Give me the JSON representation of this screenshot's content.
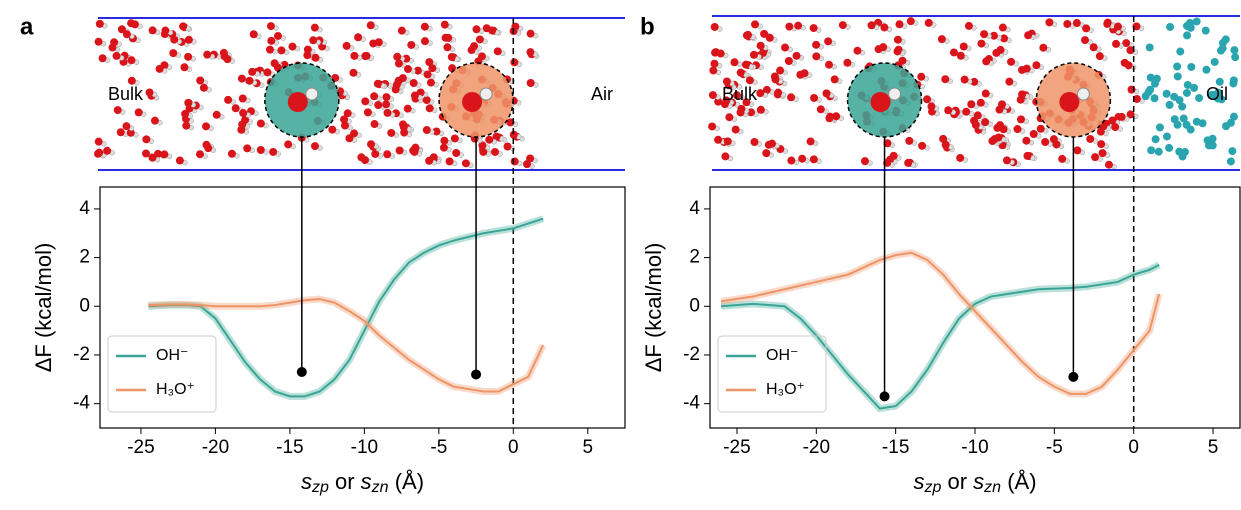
{
  "chart_data": [
    {
      "type": "line",
      "panel_label": "a",
      "left_text": "Bulk",
      "right_text": "Air",
      "ylabel": "ΔF (kcal/mol)",
      "xlabel": [
        "s",
        "zp",
        " or ",
        "s",
        "zn",
        " (Å)"
      ],
      "xlim": [
        -27.75,
        7.5
      ],
      "ylim": [
        -5,
        4.9
      ],
      "xticks": [
        -25,
        -20,
        -15,
        -10,
        -5,
        0,
        5
      ],
      "yticks": [
        -4,
        -2,
        0,
        2,
        4
      ],
      "vline": 0,
      "series": [
        {
          "name": "OH⁻",
          "color": "#3aa596",
          "x": [
            -24.5,
            -23,
            -22,
            -21,
            -20,
            -19,
            -18,
            -17,
            -16,
            -15,
            -14,
            -13,
            -12,
            -11,
            -10,
            -9,
            -8,
            -7,
            -6,
            -5,
            -4,
            -3,
            -2,
            -1,
            0,
            1,
            2
          ],
          "values": [
            0,
            0.05,
            0.05,
            0,
            -0.5,
            -1.4,
            -2.3,
            -3.0,
            -3.5,
            -3.7,
            -3.7,
            -3.5,
            -3.0,
            -2.2,
            -1.0,
            0.2,
            1.1,
            1.8,
            2.2,
            2.5,
            2.7,
            2.85,
            3.0,
            3.1,
            3.2,
            3.4,
            3.6
          ]
        },
        {
          "name": "H₃O⁺",
          "color": "#ee9466",
          "x": [
            -24.5,
            -23,
            -22,
            -21,
            -20,
            -19,
            -18,
            -17,
            -16,
            -15,
            -14,
            -13,
            -12,
            -11,
            -10,
            -9,
            -8,
            -7,
            -6,
            -5,
            -4,
            -3,
            -2,
            -1,
            0,
            1,
            2
          ],
          "values": [
            0.05,
            0.08,
            0.08,
            0.05,
            0,
            0,
            0,
            0,
            0.05,
            0.15,
            0.25,
            0.3,
            0.15,
            -0.2,
            -0.6,
            -1.2,
            -1.7,
            -2.2,
            -2.6,
            -3.0,
            -3.3,
            -3.4,
            -3.5,
            -3.5,
            -3.2,
            -2.9,
            -1.6
          ]
        }
      ],
      "markers": [
        {
          "x": -14.2,
          "y": -2.7
        },
        {
          "x": -2.5,
          "y": -2.8
        }
      ]
    },
    {
      "type": "line",
      "panel_label": "b",
      "left_text": "Bulk",
      "right_text": "Oil",
      "ylabel": "ΔF (kcal/mol)",
      "xlabel": [
        "s",
        "zp",
        " or ",
        "s",
        "zn",
        " (Å)"
      ],
      "xlim": [
        -26.7,
        6.7
      ],
      "ylim": [
        -5,
        4.9
      ],
      "xticks": [
        -25,
        -20,
        -15,
        -10,
        -5,
        0,
        5
      ],
      "yticks": [
        -4,
        -2,
        0,
        2,
        4
      ],
      "vline": 0,
      "series": [
        {
          "name": "OH⁻",
          "color": "#3aa596",
          "x": [
            -26,
            -24,
            -22,
            -21,
            -20,
            -19,
            -18,
            -17,
            -16,
            -15,
            -14,
            -13,
            -12,
            -11,
            -10,
            -9,
            -8,
            -6,
            -4,
            -3,
            -2,
            -1,
            0,
            1,
            1.6
          ],
          "values": [
            0,
            0.1,
            0,
            -0.5,
            -1.2,
            -2.0,
            -2.8,
            -3.5,
            -4.2,
            -4.1,
            -3.5,
            -2.6,
            -1.5,
            -0.5,
            0.1,
            0.4,
            0.5,
            0.7,
            0.75,
            0.8,
            0.9,
            1.0,
            1.3,
            1.5,
            1.7
          ]
        },
        {
          "name": "H₃O⁺",
          "color": "#ee9466",
          "x": [
            -26,
            -24,
            -22,
            -20,
            -18,
            -17,
            -16,
            -15,
            -14,
            -13,
            -12,
            -11,
            -10,
            -9,
            -8,
            -7,
            -6,
            -5,
            -4,
            -3,
            -2,
            -1,
            0,
            1,
            1.6
          ],
          "values": [
            0.2,
            0.4,
            0.7,
            1.0,
            1.3,
            1.6,
            1.9,
            2.1,
            2.2,
            1.9,
            1.3,
            0.5,
            -0.2,
            -0.9,
            -1.6,
            -2.3,
            -2.9,
            -3.3,
            -3.6,
            -3.6,
            -3.3,
            -2.6,
            -1.8,
            -1.0,
            0.5
          ]
        }
      ],
      "markers": [
        {
          "x": -15.7,
          "y": -3.7
        },
        {
          "x": -3.8,
          "y": -2.9
        }
      ]
    }
  ]
}
